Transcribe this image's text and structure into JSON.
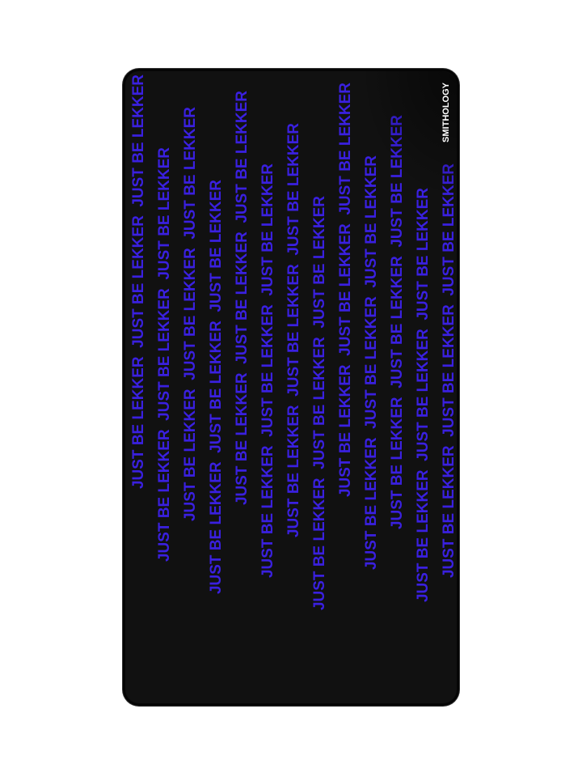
{
  "product": {
    "pattern_text": "JUST BE LEKKER",
    "logo_text": "SMITHOLOGY",
    "colors": {
      "background": "#111111",
      "text": "#3a20e0",
      "logo": "#ffffff"
    }
  }
}
